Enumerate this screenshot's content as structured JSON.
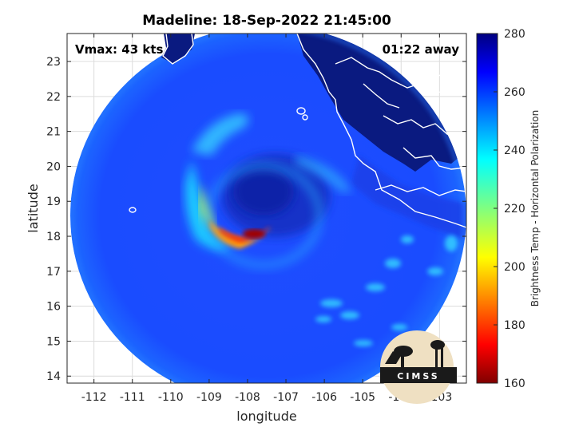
{
  "chart_data": {
    "type": "heatmap",
    "title": "Madeline: 18-Sep-2022 21:45:00",
    "xlabel": "longitude",
    "ylabel": "latitude",
    "xlim": [
      -112.7,
      -102.3
    ],
    "ylim": [
      13.8,
      23.8
    ],
    "x_ticks": [
      -112,
      -111,
      -110,
      -109,
      -108,
      -107,
      -106,
      -105,
      -104,
      -103
    ],
    "y_ticks": [
      14,
      15,
      16,
      17,
      18,
      19,
      20,
      21,
      22,
      23
    ],
    "grid": true,
    "colorbar": {
      "label": "Brightness Temp - Horizontal Polarization",
      "range": [
        160,
        280
      ],
      "ticks": [
        160,
        180,
        200,
        220,
        240,
        260,
        280
      ],
      "colormap": "jet"
    },
    "annotations": {
      "vmax": "Vmax: 43 kts",
      "time_away": "01:22 away"
    },
    "storm_center": {
      "lon": -107.9,
      "lat": 18.9
    },
    "features": [
      {
        "name": "eye",
        "lon": -107.6,
        "lat": 19.1,
        "value": 255
      },
      {
        "name": "eyewall-cold-core",
        "lon": -107.8,
        "lat": 18.0,
        "value": 170
      },
      {
        "name": "rainband-west",
        "lon": -109.0,
        "lat": 19.2,
        "value": 210
      },
      {
        "name": "rainband-north",
        "lon": -108.5,
        "lat": 20.6,
        "value": 232
      },
      {
        "name": "rainband-southeast",
        "lon": -104.6,
        "lat": 16.0,
        "value": 238
      }
    ],
    "background_value": 262,
    "swath_edge_value": 250,
    "land_value": 275
  },
  "logo": {
    "text": "CIMSS"
  },
  "colors": {
    "land": "#0a1a80",
    "coast": "#ffffff"
  }
}
